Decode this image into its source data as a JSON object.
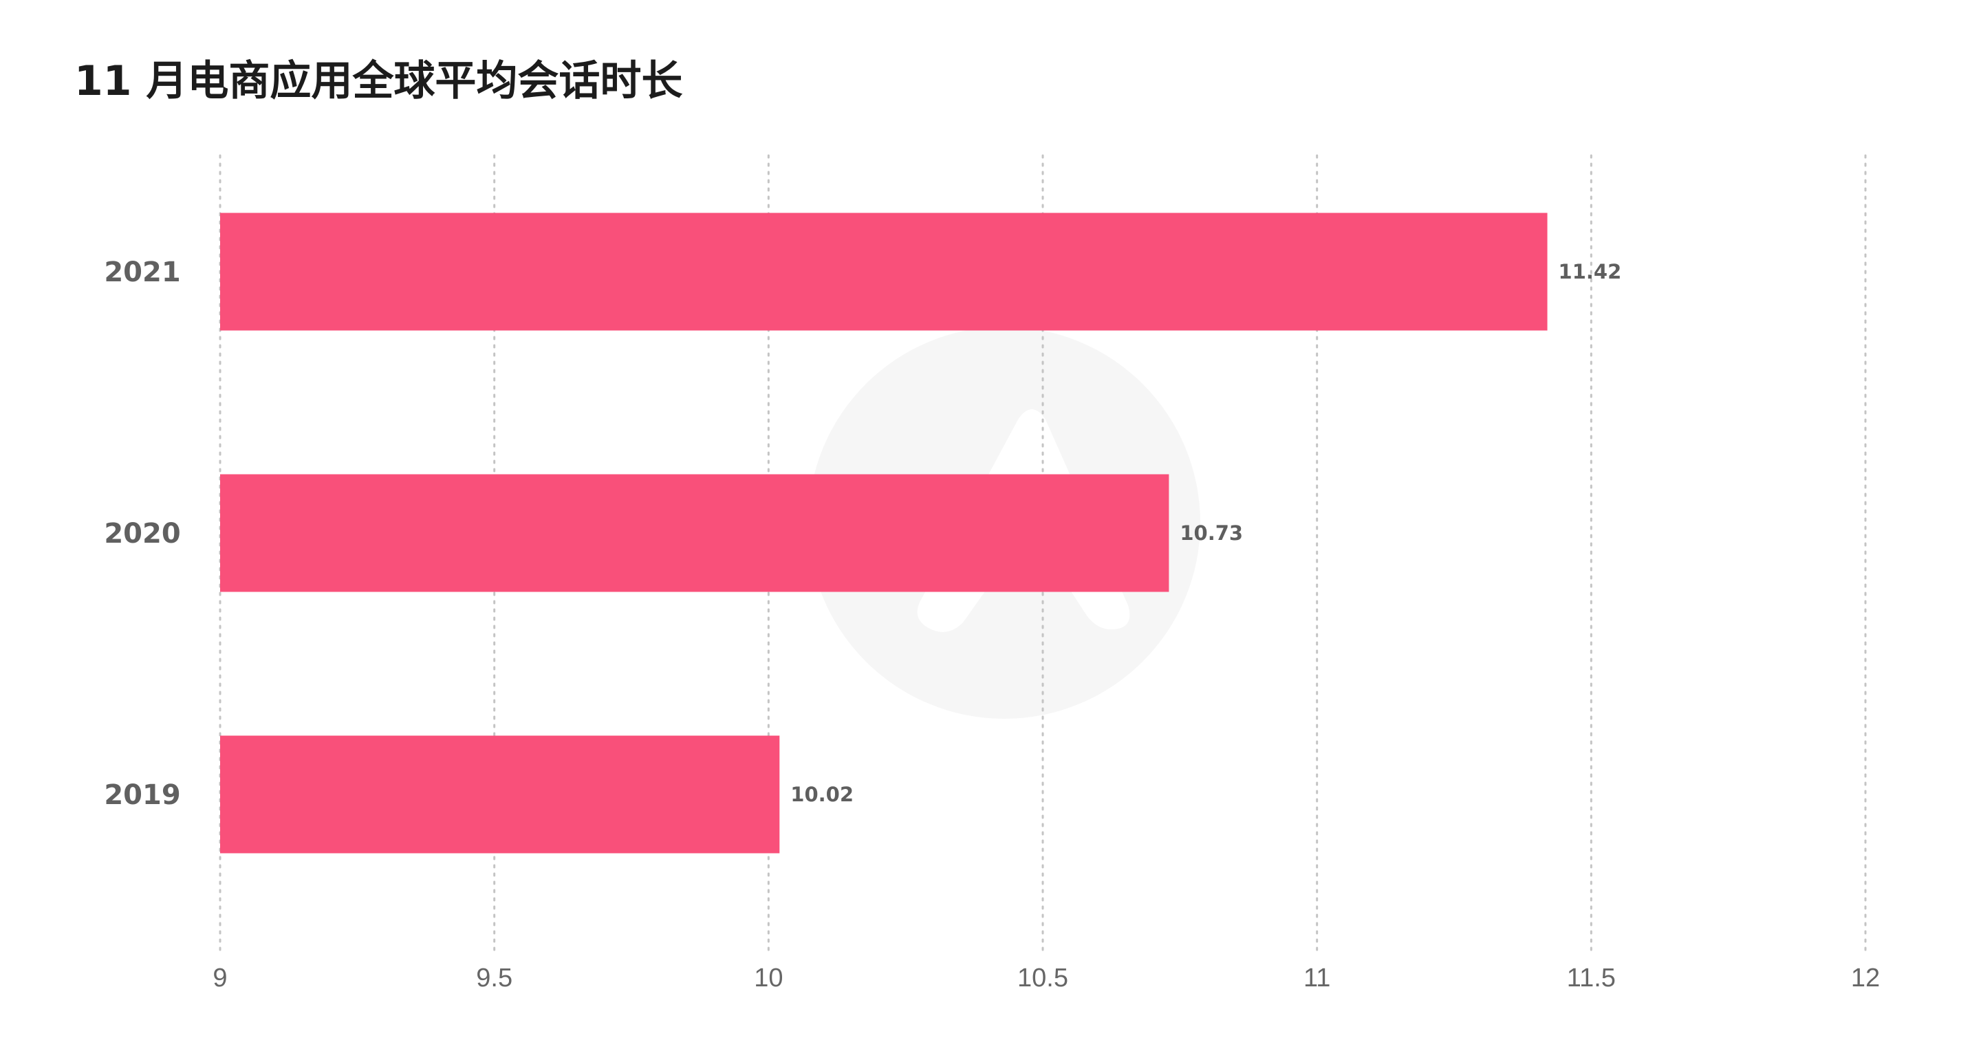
{
  "chart_data": {
    "type": "bar",
    "orientation": "horizontal",
    "title": "11 月电商应用全球平均会话时长",
    "categories": [
      "2021",
      "2020",
      "2019"
    ],
    "values": [
      11.42,
      10.73,
      10.02
    ],
    "data_labels": [
      "11.42",
      "10.73",
      "10.02"
    ],
    "xlim": [
      9,
      12
    ],
    "x_ticks": [
      "9",
      "9.5",
      "10",
      "10.5",
      "11",
      "11.5",
      "12"
    ],
    "xlabel": "",
    "ylabel": "",
    "grid": "vertical dotted",
    "legend": "none",
    "bar_color": "#F9507A",
    "watermark": "app-annie-logo"
  }
}
